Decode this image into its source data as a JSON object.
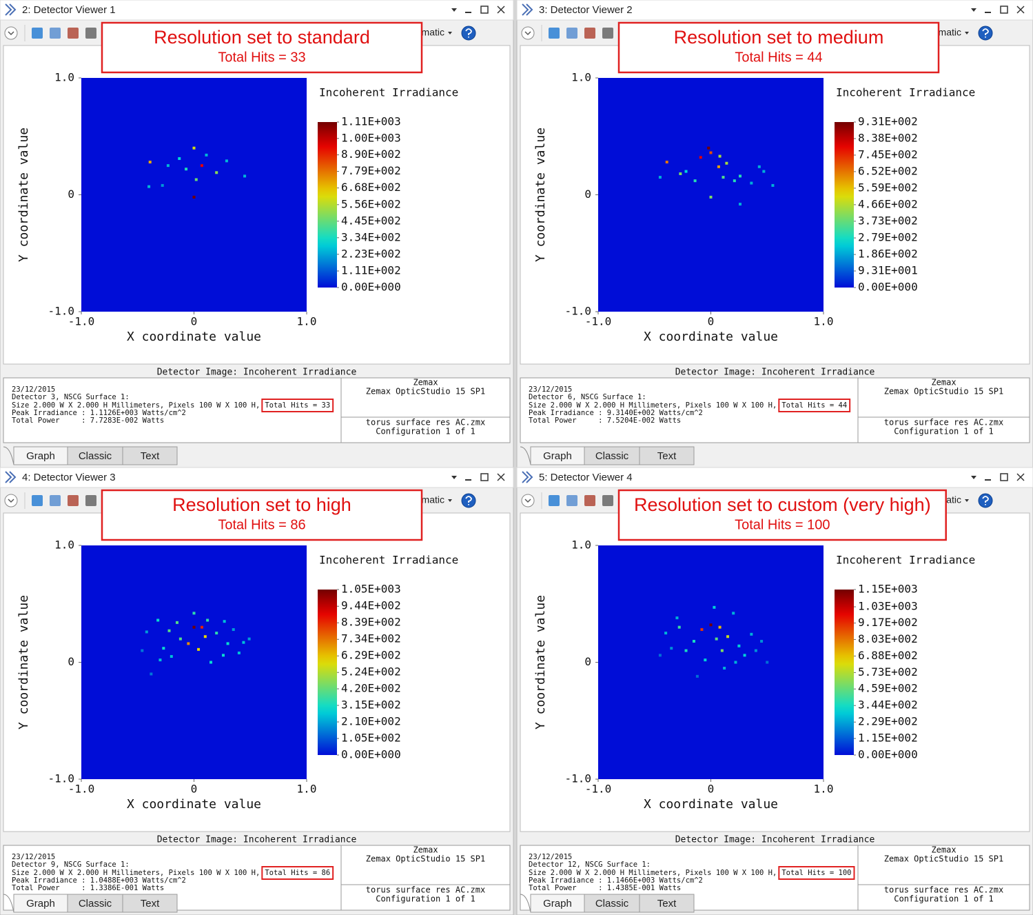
{
  "panels": [
    {
      "title": "2: Detector Viewer 1",
      "toolbar_text": "matic",
      "annotation": {
        "heading": "Resolution set to standard",
        "hits": "Total Hits = 33"
      },
      "chart_data": {
        "type": "heatmap",
        "xlabel": "X coordinate value",
        "ylabel": "Y coordinate value",
        "xlim": [
          -1,
          1
        ],
        "ylim": [
          -1,
          1
        ],
        "xticks": [
          {
            "value": -1,
            "label": "-1.0"
          },
          0,
          {
            "value": 1,
            "label": "1.0"
          }
        ],
        "yticks": [
          {
            "value": -1,
            "label": "-1.0"
          },
          0,
          {
            "value": 1,
            "label": "1.0"
          }
        ],
        "colorbar_title": "Incoherent Irradiance",
        "clim": [
          0,
          1110
        ],
        "colorbar_ticks": [
          {
            "value": 1110,
            "label": "1.11E+003"
          },
          {
            "value": 1000,
            "label": "1.00E+003"
          },
          {
            "value": 890,
            "label": "8.90E+002"
          },
          {
            "value": 779,
            "label": "7.79E+002"
          },
          {
            "value": 668,
            "label": "6.68E+002"
          },
          {
            "value": 556,
            "label": "5.56E+002"
          },
          {
            "value": 445,
            "label": "4.45E+002"
          },
          {
            "value": 334,
            "label": "3.34E+002"
          },
          {
            "value": 223,
            "label": "2.23E+002"
          },
          {
            "value": 111,
            "label": "1.11E+002"
          },
          {
            "value": 0,
            "label": "0.00E+000"
          }
        ],
        "hits": {
          "x": [
            -0.39,
            0.0,
            0.0,
            0.07,
            -0.07,
            0.2,
            0.02,
            -0.4,
            0.45,
            -0.23,
            0.29,
            -0.13,
            0.11,
            -0.28
          ],
          "y": [
            0.28,
            0.4,
            -0.02,
            0.25,
            0.22,
            0.19,
            0.13,
            0.07,
            0.16,
            0.25,
            0.29,
            0.31,
            0.34,
            0.08
          ],
          "values": [
            700,
            600,
            1110,
            950,
            350,
            500,
            450,
            250,
            250,
            250,
            250,
            300,
            250,
            200
          ]
        }
      },
      "caption": "Detector Image: Incoherent Irradiance",
      "report": {
        "lines": [
          "23/12/2015",
          "Detector 3, NSCG Surface 1:",
          "Size 2.000 W X 2.000 H Millimeters, Pixels 100 W X 100 H,",
          "Peak Irradiance : 1.1126E+003 Watts/cm^2",
          "Total Power     : 7.7283E-002 Watts"
        ],
        "hits_label": "Total Hits = 33"
      },
      "vendor": [
        "Zemax",
        "Zemax OpticStudio 15 SP1"
      ],
      "file": [
        "torus surface res AC.zmx",
        "Configuration 1 of 1"
      ],
      "tabs": [
        "Graph",
        "Classic",
        "Text"
      ]
    },
    {
      "title": "3: Detector Viewer 2",
      "toolbar_text": "matic",
      "annotation": {
        "heading": "Resolution set to medium",
        "hits": "Total Hits = 44"
      },
      "chart_data": {
        "type": "heatmap",
        "xlabel": "X coordinate value",
        "ylabel": "Y coordinate value",
        "xlim": [
          -1,
          1
        ],
        "ylim": [
          -1,
          1
        ],
        "xticks": [
          {
            "value": -1,
            "label": "-1.0"
          },
          0,
          {
            "value": 1,
            "label": "1.0"
          }
        ],
        "yticks": [
          {
            "value": -1,
            "label": "-1.0"
          },
          0,
          {
            "value": 1,
            "label": "1.0"
          }
        ],
        "colorbar_title": "Incoherent Irradiance",
        "clim": [
          0,
          931
        ],
        "colorbar_ticks": [
          {
            "value": 931,
            "label": "9.31E+002"
          },
          {
            "value": 838,
            "label": "8.38E+002"
          },
          {
            "value": 745,
            "label": "7.45E+002"
          },
          {
            "value": 652,
            "label": "6.52E+002"
          },
          {
            "value": 559,
            "label": "5.59E+002"
          },
          {
            "value": 466,
            "label": "4.66E+002"
          },
          {
            "value": 373,
            "label": "3.73E+002"
          },
          {
            "value": 279,
            "label": "2.79E+002"
          },
          {
            "value": 186,
            "label": "1.86E+002"
          },
          {
            "value": 93.1,
            "label": "9.31E+001"
          },
          {
            "value": 0,
            "label": "0.00E+000"
          }
        ],
        "hits": {
          "x": [
            -0.39,
            -0.02,
            0.0,
            -0.09,
            0.07,
            0.14,
            0.21,
            -0.27,
            0.43,
            0.55,
            -0.22,
            0.11,
            0.26,
            -0.45,
            0.0,
            0.26,
            -0.14,
            0.08,
            0.36,
            0.47
          ],
          "y": [
            0.28,
            0.4,
            0.36,
            0.32,
            0.24,
            0.27,
            0.12,
            0.18,
            0.24,
            0.08,
            0.2,
            0.15,
            0.16,
            0.15,
            -0.02,
            -0.08,
            0.12,
            0.33,
            0.1,
            0.2
          ],
          "values": [
            650,
            931,
            700,
            800,
            600,
            450,
            300,
            400,
            200,
            200,
            250,
            350,
            300,
            200,
            400,
            200,
            300,
            450,
            200,
            200
          ]
        }
      },
      "caption": "Detector Image: Incoherent Irradiance",
      "report": {
        "lines": [
          "23/12/2015",
          "Detector 6, NSCG Surface 1:",
          "Size 2.000 W X 2.000 H Millimeters, Pixels 100 W X 100 H,",
          "Peak Irradiance : 9.3140E+002 Watts/cm^2",
          "Total Power     : 7.5204E-002 Watts"
        ],
        "hits_label": "Total Hits = 44"
      },
      "vendor": [
        "Zemax",
        "Zemax OpticStudio 15 SP1"
      ],
      "file": [
        "torus surface res AC.zmx",
        "Configuration 1 of 1"
      ],
      "tabs": [
        "Graph",
        "Classic",
        "Text"
      ]
    },
    {
      "title": "4: Detector Viewer 3",
      "toolbar_text": "matic",
      "annotation": {
        "heading": "Resolution set to high",
        "hits": "Total Hits = 86"
      },
      "chart_data": {
        "type": "heatmap",
        "xlabel": "X coordinate value",
        "ylabel": "Y coordinate value",
        "xlim": [
          -1,
          1
        ],
        "ylim": [
          -1,
          1
        ],
        "xticks": [
          {
            "value": -1,
            "label": "-1.0"
          },
          0,
          {
            "value": 1,
            "label": "1.0"
          }
        ],
        "yticks": [
          {
            "value": -1,
            "label": "-1.0"
          },
          0,
          {
            "value": 1,
            "label": "1.0"
          }
        ],
        "colorbar_title": "Incoherent Irradiance",
        "clim": [
          0,
          1050
        ],
        "colorbar_ticks": [
          {
            "value": 1050,
            "label": "1.05E+003"
          },
          {
            "value": 944,
            "label": "9.44E+002"
          },
          {
            "value": 839,
            "label": "8.39E+002"
          },
          {
            "value": 734,
            "label": "7.34E+002"
          },
          {
            "value": 629,
            "label": "6.29E+002"
          },
          {
            "value": 524,
            "label": "5.24E+002"
          },
          {
            "value": 420,
            "label": "4.20E+002"
          },
          {
            "value": 315,
            "label": "3.15E+002"
          },
          {
            "value": 210,
            "label": "2.10E+002"
          },
          {
            "value": 105,
            "label": "1.05E+002"
          },
          {
            "value": 0,
            "label": "0.00E+000"
          }
        ],
        "hits": {
          "x": [
            0.0,
            0.07,
            0.1,
            -0.05,
            -0.22,
            -0.27,
            0.2,
            0.3,
            0.44,
            -0.42,
            -0.3,
            0.0,
            0.15,
            -0.15,
            0.26,
            -0.46,
            0.4,
            -0.32,
            0.04,
            0.27,
            -0.12,
            0.35,
            -0.2,
            0.12,
            -0.38,
            0.49
          ],
          "y": [
            0.3,
            0.3,
            0.22,
            0.16,
            0.27,
            0.12,
            0.25,
            0.16,
            0.17,
            0.26,
            0.02,
            0.42,
            0.0,
            0.34,
            0.06,
            0.1,
            0.08,
            0.36,
            0.11,
            0.35,
            0.2,
            0.28,
            0.05,
            0.36,
            -0.1,
            0.2
          ],
          "values": [
            1050,
            850,
            600,
            700,
            400,
            300,
            350,
            300,
            250,
            200,
            250,
            350,
            300,
            400,
            300,
            150,
            250,
            300,
            600,
            250,
            400,
            200,
            250,
            350,
            150,
            200
          ]
        }
      },
      "caption": "Detector Image: Incoherent Irradiance",
      "report": {
        "lines": [
          "23/12/2015",
          "Detector 9, NSCG Surface 1:",
          "Size 2.000 W X 2.000 H Millimeters, Pixels 100 W X 100 H,",
          "Peak Irradiance : 1.0488E+003 Watts/cm^2",
          "Total Power     : 1.3386E-001 Watts"
        ],
        "hits_label": "Total Hits = 86"
      },
      "vendor": [
        "Zemax",
        "Zemax OpticStudio 15 SP1"
      ],
      "file": [
        "torus surface res AC.zmx",
        "Configuration 1 of 1"
      ],
      "tabs": [
        "Graph",
        "Classic",
        "Text"
      ]
    },
    {
      "title": "5: Detector Viewer 4",
      "toolbar_text": "atic",
      "annotation": {
        "heading": "Resolution set to custom (very high)",
        "hits": "Total Hits = 100"
      },
      "chart_data": {
        "type": "heatmap",
        "xlabel": "X coordinate value",
        "ylabel": "Y coordinate value",
        "xlim": [
          -1,
          1
        ],
        "ylim": [
          -1,
          1
        ],
        "xticks": [
          {
            "value": -1,
            "label": "-1.0"
          },
          0,
          {
            "value": 1,
            "label": "1.0"
          }
        ],
        "yticks": [
          {
            "value": -1,
            "label": "-1.0"
          },
          0,
          {
            "value": 1,
            "label": "1.0"
          }
        ],
        "colorbar_title": "Incoherent Irradiance",
        "clim": [
          0,
          1150
        ],
        "colorbar_ticks": [
          {
            "value": 1150,
            "label": "1.15E+003"
          },
          {
            "value": 1030,
            "label": "1.03E+003"
          },
          {
            "value": 917,
            "label": "9.17E+002"
          },
          {
            "value": 803,
            "label": "8.03E+002"
          },
          {
            "value": 688,
            "label": "6.88E+002"
          },
          {
            "value": 573,
            "label": "5.73E+002"
          },
          {
            "value": 459,
            "label": "4.59E+002"
          },
          {
            "value": 344,
            "label": "3.44E+002"
          },
          {
            "value": 229,
            "label": "2.29E+002"
          },
          {
            "value": 115,
            "label": "1.15E+002"
          },
          {
            "value": 0,
            "label": "0.00E+000"
          }
        ],
        "hits": {
          "x": [
            0.0,
            -0.08,
            0.08,
            0.15,
            -0.15,
            -0.28,
            0.25,
            0.36,
            0.45,
            -0.4,
            -0.45,
            0.03,
            0.2,
            -0.22,
            0.3,
            0.1,
            -0.05,
            0.5,
            -0.3,
            0.4,
            0.12,
            -0.12,
            0.22,
            -0.35,
            0.05
          ],
          "y": [
            0.32,
            0.28,
            0.3,
            0.22,
            0.18,
            0.3,
            0.14,
            0.24,
            0.18,
            0.25,
            0.06,
            0.47,
            0.42,
            0.1,
            0.06,
            0.1,
            0.02,
            0.0,
            0.38,
            0.1,
            -0.05,
            -0.12,
            0.0,
            0.12,
            0.2
          ],
          "values": [
            1150,
            900,
            700,
            600,
            350,
            400,
            300,
            250,
            200,
            250,
            150,
            300,
            250,
            350,
            300,
            500,
            300,
            150,
            250,
            200,
            250,
            150,
            250,
            200,
            450
          ]
        }
      },
      "caption": "Detector Image: Incoherent Irradiance",
      "report": {
        "lines": [
          "23/12/2015",
          "Detector 12, NSCG Surface 1:",
          "Size 2.000 W X 2.000 H Millimeters, Pixels 100 W X 100 H,",
          "Peak Irradiance : 1.1466E+003 Watts/cm^2",
          "Total Power     : 1.4385E-001 Watts"
        ],
        "hits_label": "Total Hits = 100"
      },
      "vendor": [
        "Zemax",
        "Zemax OpticStudio 15 SP1"
      ],
      "file": [
        "torus surface res AC.zmx",
        "Configuration 1 of 1"
      ],
      "tabs": [
        "Graph",
        "Classic",
        "Text"
      ]
    }
  ]
}
